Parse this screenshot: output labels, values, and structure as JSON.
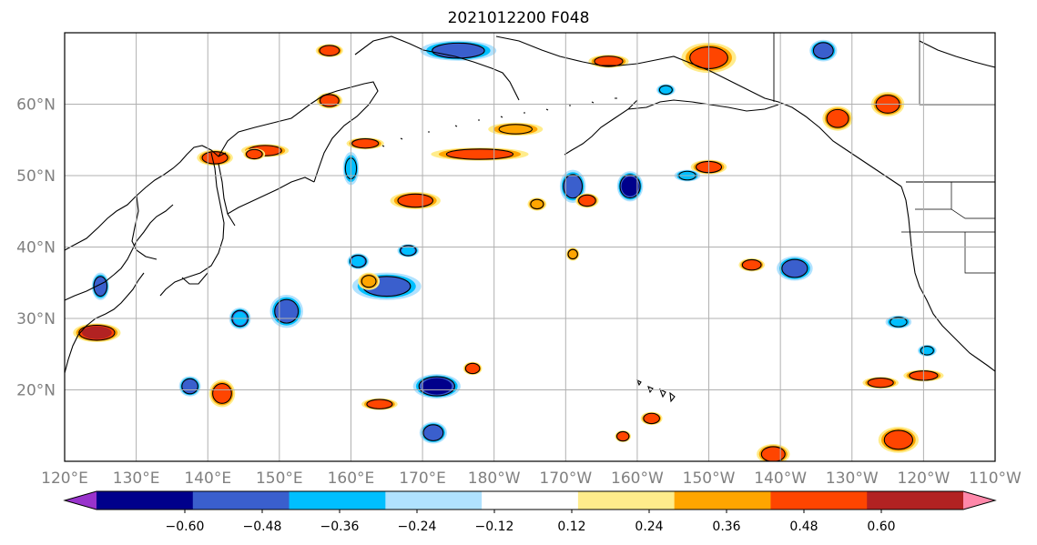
{
  "title": "2021012200 F048",
  "map": {
    "lat_labels": [
      "60°N",
      "50°N",
      "40°N",
      "30°N",
      "20°N"
    ],
    "lat_values": [
      60,
      50,
      40,
      30,
      20
    ],
    "lon_labels": [
      "120°E",
      "130°E",
      "140°E",
      "150°E",
      "160°E",
      "170°E",
      "180°W",
      "170°W",
      "160°W",
      "150°W",
      "140°W",
      "130°W",
      "120°W",
      "110°W"
    ],
    "lon_values": [
      120,
      130,
      140,
      150,
      160,
      170,
      180,
      190,
      200,
      210,
      220,
      230,
      240,
      250
    ],
    "lon_range": [
      120,
      250
    ],
    "lat_range": [
      10,
      70
    ],
    "grid": true,
    "gridline_color": "#b0b0b0",
    "coastline_color": "#000000"
  },
  "colorbar": {
    "ticks": [
      "−0.60",
      "−0.48",
      "−0.36",
      "−0.24",
      "−0.12",
      "0.12",
      "0.24",
      "0.36",
      "0.48",
      "0.60"
    ],
    "colors": [
      "#9933cc",
      "#00008b",
      "#3a5fcd",
      "#00bfff",
      "#b0e2ff",
      "#ffffff",
      "#ffec8b",
      "#ffa500",
      "#ff4500",
      "#b22222",
      "#ff88aa"
    ],
    "extend": "both"
  },
  "blobs": [
    {
      "lon": 175,
      "lat": 67.5,
      "rx": 5,
      "ry": 1.1,
      "v": -0.4
    },
    {
      "lon": 210,
      "lat": 66.5,
      "rx": 3.5,
      "ry": 1.8,
      "v": 0.4
    },
    {
      "lon": 196,
      "lat": 66,
      "rx": 2.5,
      "ry": 0.6,
      "v": 0.36
    },
    {
      "lon": 162,
      "lat": 54.5,
      "rx": 2.3,
      "ry": 0.5,
      "v": 0.4
    },
    {
      "lon": 148,
      "lat": 53.5,
      "rx": 3,
      "ry": 0.6,
      "v": 0.4
    },
    {
      "lon": 178,
      "lat": 53,
      "rx": 6.5,
      "ry": 0.6,
      "v": 0.4
    },
    {
      "lon": 183,
      "lat": 56.5,
      "rx": 3.5,
      "ry": 0.6,
      "v": 0.3
    },
    {
      "lon": 169,
      "lat": 46.5,
      "rx": 3.2,
      "ry": 0.9,
      "v": 0.45
    },
    {
      "lon": 191,
      "lat": 48.5,
      "rx": 1.5,
      "ry": 2,
      "v": -0.45
    },
    {
      "lon": 199,
      "lat": 48.5,
      "rx": 1.5,
      "ry": 1.8,
      "v": -0.5
    },
    {
      "lon": 193,
      "lat": 46.5,
      "rx": 1.3,
      "ry": 0.7,
      "v": 0.36
    },
    {
      "lon": 210,
      "lat": 51.2,
      "rx": 2.2,
      "ry": 0.7,
      "v": 0.4
    },
    {
      "lon": 207,
      "lat": 50,
      "rx": 1.5,
      "ry": 0.5,
      "v": -0.3
    },
    {
      "lon": 165,
      "lat": 34.5,
      "rx": 4.5,
      "ry": 1.6,
      "v": -0.4
    },
    {
      "lon": 151,
      "lat": 31,
      "rx": 2,
      "ry": 2,
      "v": -0.4
    },
    {
      "lon": 124.5,
      "lat": 28,
      "rx": 3,
      "ry": 1,
      "v": 0.5
    },
    {
      "lon": 172,
      "lat": 20.5,
      "rx": 3,
      "ry": 1.4,
      "v": -0.5
    },
    {
      "lon": 142,
      "lat": 19.5,
      "rx": 1.5,
      "ry": 1.6,
      "v": 0.4
    },
    {
      "lon": 137.5,
      "lat": 20.5,
      "rx": 1.2,
      "ry": 1.1,
      "v": -0.4
    },
    {
      "lon": 125,
      "lat": 34.5,
      "rx": 0.9,
      "ry": 1.6,
      "v": -0.4
    },
    {
      "lon": 160,
      "lat": 51,
      "rx": 0.8,
      "ry": 2,
      "v": -0.3
    },
    {
      "lon": 228,
      "lat": 58,
      "rx": 1.8,
      "ry": 1.4,
      "v": 0.4
    },
    {
      "lon": 226,
      "lat": 67.5,
      "rx": 1.6,
      "ry": 1.2,
      "v": -0.45
    },
    {
      "lon": 235,
      "lat": 60,
      "rx": 2,
      "ry": 1.4,
      "v": 0.4
    },
    {
      "lon": 236.5,
      "lat": 13,
      "rx": 2.5,
      "ry": 1.5,
      "v": 0.4
    },
    {
      "lon": 240,
      "lat": 22,
      "rx": 2.5,
      "ry": 0.5,
      "v": 0.36
    },
    {
      "lon": 234,
      "lat": 21,
      "rx": 2.2,
      "ry": 0.5,
      "v": 0.36
    },
    {
      "lon": 219,
      "lat": 11,
      "rx": 2,
      "ry": 1.1,
      "v": 0.45
    },
    {
      "lon": 222,
      "lat": 37,
      "rx": 2.2,
      "ry": 1.4,
      "v": -0.4
    },
    {
      "lon": 216,
      "lat": 37.5,
      "rx": 1.5,
      "ry": 0.6,
      "v": 0.36
    },
    {
      "lon": 157,
      "lat": 67.5,
      "rx": 1.6,
      "ry": 0.6,
      "v": 0.4
    },
    {
      "lon": 164,
      "lat": 18,
      "rx": 2.2,
      "ry": 0.5,
      "v": 0.4
    },
    {
      "lon": 141,
      "lat": 52.5,
      "rx": 2.2,
      "ry": 0.8,
      "v": 0.36
    },
    {
      "lon": 162.5,
      "lat": 35.2,
      "rx": 1.2,
      "ry": 0.9,
      "v": 0.3
    },
    {
      "lon": 157,
      "lat": 60.5,
      "rx": 1.5,
      "ry": 0.8,
      "v": 0.36
    },
    {
      "lon": 186,
      "lat": 46,
      "rx": 1,
      "ry": 0.6,
      "v": 0.3
    },
    {
      "lon": 171.5,
      "lat": 14,
      "rx": 1.6,
      "ry": 1.2,
      "v": -0.4
    },
    {
      "lon": 161,
      "lat": 38,
      "rx": 1.2,
      "ry": 0.8,
      "v": -0.36
    },
    {
      "lon": 168,
      "lat": 39.5,
      "rx": 1.2,
      "ry": 0.6,
      "v": -0.36
    },
    {
      "lon": 204,
      "lat": 62,
      "rx": 1,
      "ry": 0.5,
      "v": -0.3
    },
    {
      "lon": 202,
      "lat": 16,
      "rx": 1.2,
      "ry": 0.6,
      "v": 0.36
    },
    {
      "lon": 144.5,
      "lat": 30,
      "rx": 1.2,
      "ry": 1.2,
      "v": -0.36
    },
    {
      "lon": 177,
      "lat": 23,
      "rx": 1,
      "ry": 0.6,
      "v": 0.4
    },
    {
      "lon": 146.5,
      "lat": 53,
      "rx": 1.2,
      "ry": 0.5,
      "v": 0.36
    },
    {
      "lon": 240.5,
      "lat": 25.5,
      "rx": 1,
      "ry": 0.5,
      "v": -0.3
    },
    {
      "lon": 236.5,
      "lat": 29.5,
      "rx": 1.5,
      "ry": 0.6,
      "v": -0.3
    },
    {
      "lon": 198,
      "lat": 13.5,
      "rx": 0.8,
      "ry": 0.5,
      "v": 0.36
    },
    {
      "lon": 191,
      "lat": 39,
      "rx": 0.6,
      "ry": 0.6,
      "v": 0.3
    }
  ]
}
